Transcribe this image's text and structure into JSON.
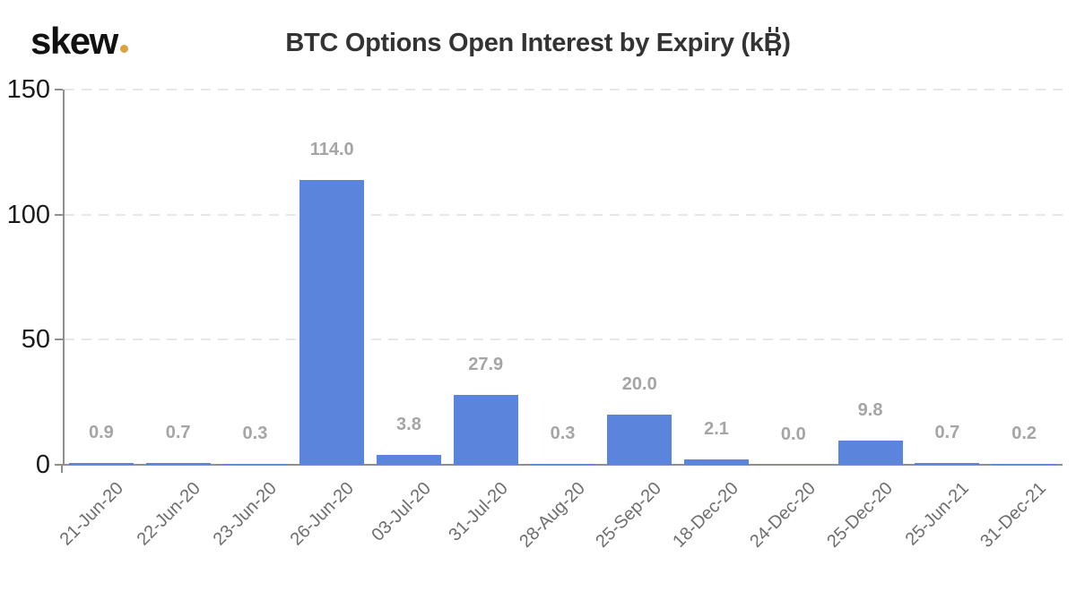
{
  "logo": {
    "text": "skew",
    "dot_color": "#d9a43f"
  },
  "title": {
    "text": "BTC Options Open Interest by Expiry (k₿)",
    "prefix": "BTC Options Open Interest by Expiry (k",
    "currency_glyph": "B",
    "suffix": ")"
  },
  "chart_data": {
    "type": "bar",
    "title": "BTC Options Open Interest by Expiry (k₿)",
    "categories": [
      "21-Jun-20",
      "22-Jun-20",
      "23-Jun-20",
      "26-Jun-20",
      "03-Jul-20",
      "31-Jul-20",
      "28-Aug-20",
      "25-Sep-20",
      "18-Dec-20",
      "24-Dec-20",
      "25-Dec-20",
      "25-Jun-21",
      "31-Dec-21"
    ],
    "values": [
      0.9,
      0.7,
      0.3,
      114.0,
      3.8,
      27.9,
      0.3,
      20.0,
      2.1,
      0.0,
      9.8,
      0.7,
      0.2
    ],
    "value_labels": [
      "0.9",
      "0.7",
      "0.3",
      "114.0",
      "3.8",
      "27.9",
      "0.3",
      "20.0",
      "2.1",
      "0.0",
      "9.8",
      "0.7",
      "0.2"
    ],
    "xlabel": "",
    "ylabel": "",
    "ylim": [
      0,
      150
    ],
    "ytick_values": [
      0,
      50,
      100,
      150
    ],
    "ytick_labels": [
      "0",
      "50",
      "100",
      "150"
    ],
    "grid": "horizontal-dashed",
    "legend": "none",
    "colors": {
      "bar": "#5b85dc",
      "value_label": "#a5a5a5",
      "axis_line": "#8f8f8b",
      "gridline": "#e7e7e7",
      "ytick_label": "#1a1a1a",
      "xtick_label": "#6e6e6e",
      "title": "#333333",
      "logo": "#111111",
      "logo_dot": "#d9a43f",
      "background": "#ffffff"
    }
  }
}
